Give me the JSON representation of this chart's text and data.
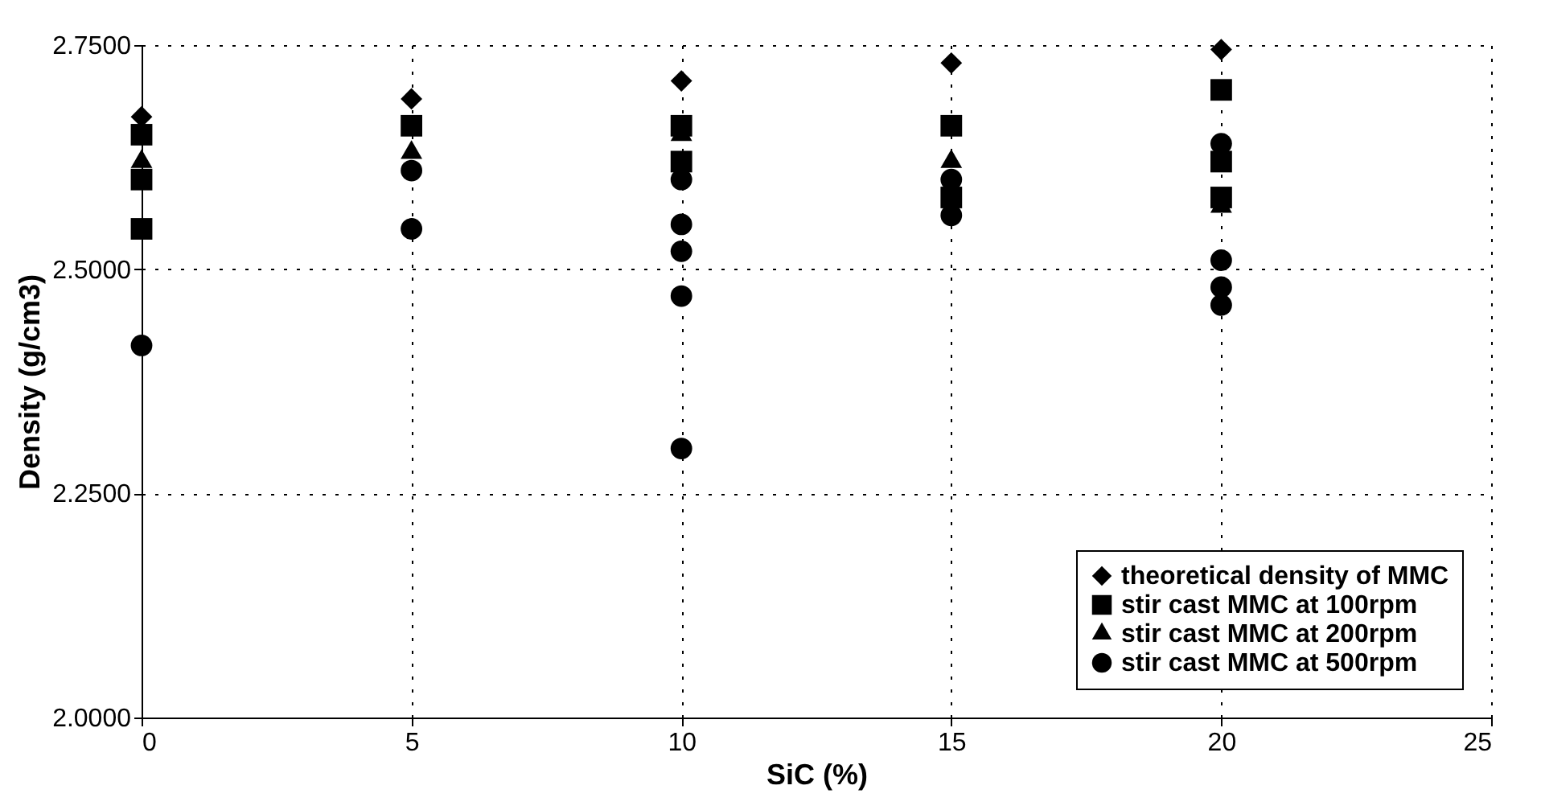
{
  "chart_data": {
    "type": "scatter",
    "xlabel": "SiC (%)",
    "ylabel": "Density (g/cm3)",
    "xlim": [
      0,
      25
    ],
    "xticks": [
      0,
      5,
      10,
      15,
      20,
      25
    ],
    "ylim": [
      2.0,
      2.75
    ],
    "yticks": [
      {
        "value": 2.0,
        "label": "2.0000"
      },
      {
        "value": 2.25,
        "label": "2.2500"
      },
      {
        "value": 2.5,
        "label": "2.5000"
      },
      {
        "value": 2.75,
        "label": "2.7500"
      }
    ],
    "grid": true,
    "legend": "bottom right",
    "series": [
      {
        "name": "theoretical density of MMC",
        "color": "#000000",
        "marker": "diamond",
        "x": [
          0,
          5,
          10,
          15,
          20
        ],
        "values": [
          2.67,
          2.69,
          2.71,
          2.73,
          2.745
        ]
      },
      {
        "name": "stir cast MMC at 100rpm",
        "color": "#000000",
        "marker": "square",
        "x": [
          0,
          0,
          0,
          5,
          10,
          10,
          15,
          15,
          20,
          20,
          20
        ],
        "values": [
          2.545,
          2.6,
          2.65,
          2.66,
          2.62,
          2.66,
          2.58,
          2.66,
          2.7,
          2.62,
          2.58
        ]
      },
      {
        "name": "stir cast MMC at 200rpm",
        "color": "#000000",
        "marker": "triangle",
        "x": [
          0,
          5,
          10,
          15,
          20
        ],
        "values": [
          2.62,
          2.63,
          2.65,
          2.62,
          2.57
        ]
      },
      {
        "name": "stir cast MMC at 500rpm",
        "color": "#000000",
        "marker": "circle",
        "x": [
          0,
          5,
          5,
          10,
          10,
          10,
          10,
          10,
          15,
          15,
          20,
          20,
          20,
          20
        ],
        "values": [
          2.415,
          2.545,
          2.61,
          2.6,
          2.55,
          2.52,
          2.47,
          2.3,
          2.56,
          2.6,
          2.64,
          2.51,
          2.48,
          2.46
        ]
      }
    ]
  }
}
